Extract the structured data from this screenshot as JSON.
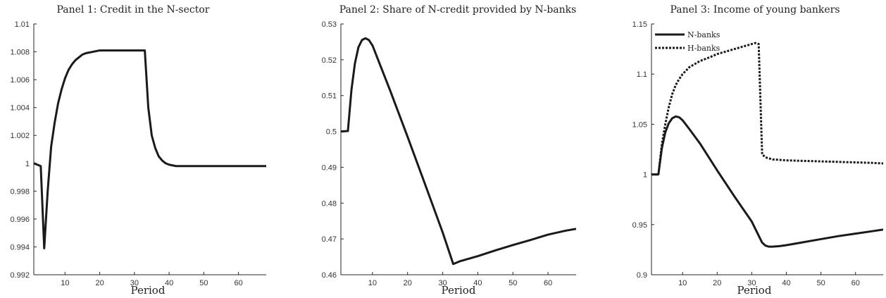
{
  "chart_data": [
    {
      "type": "line",
      "title": "Panel 1: Credit in the N-sector",
      "xlabel": "Period",
      "ylabel": "",
      "xlim": [
        1,
        68
      ],
      "ylim": [
        0.992,
        1.01
      ],
      "xticks": [
        10,
        20,
        30,
        40,
        50,
        60
      ],
      "yticks": [
        "0.992",
        "0.994",
        "0.996",
        "0.998",
        "1",
        "1.002",
        "1.004",
        "1.006",
        "1.008",
        "1.01"
      ],
      "series": [
        {
          "line_style": "solid",
          "color": "#1a1a1a",
          "x": [
            1,
            3,
            4,
            5,
            6,
            7,
            8,
            9,
            10,
            11,
            12,
            13,
            14,
            15,
            16,
            18,
            20,
            22,
            25,
            28,
            30,
            32,
            33,
            34,
            35,
            36,
            37,
            38,
            39,
            40,
            42,
            45,
            50,
            60,
            68
          ],
          "y": [
            1.0,
            0.9998,
            0.9939,
            0.998,
            1.0012,
            1.0029,
            1.0043,
            1.0053,
            1.0061,
            1.0067,
            1.0071,
            1.0074,
            1.0076,
            1.0078,
            1.0079,
            1.008,
            1.0081,
            1.0081,
            1.0081,
            1.0081,
            1.0081,
            1.0081,
            1.0081,
            1.004,
            1.002,
            1.0011,
            1.0005,
            1.0002,
            1.0,
            0.9999,
            0.9998,
            0.9998,
            0.9998,
            0.9998,
            0.9998
          ]
        }
      ]
    },
    {
      "type": "line",
      "title": "Panel 2: Share of N-credit provided by N-banks",
      "xlabel": "Period",
      "ylabel": "",
      "xlim": [
        1,
        68
      ],
      "ylim": [
        0.46,
        0.53
      ],
      "xticks": [
        10,
        20,
        30,
        40,
        50,
        60
      ],
      "yticks": [
        "0.46",
        "0.47",
        "0.48",
        "0.49",
        "0.5",
        "0.51",
        "0.52",
        "0.53"
      ],
      "series": [
        {
          "line_style": "solid",
          "color": "#1a1a1a",
          "x": [
            1,
            3,
            4,
            5,
            6,
            7,
            8,
            9,
            10,
            12,
            15,
            20,
            25,
            30,
            33,
            35,
            40,
            45,
            50,
            55,
            60,
            65,
            68
          ],
          "y": [
            0.5,
            0.5001,
            0.5115,
            0.519,
            0.5235,
            0.5255,
            0.526,
            0.5255,
            0.524,
            0.519,
            0.5115,
            0.4985,
            0.4852,
            0.4718,
            0.463,
            0.4638,
            0.4652,
            0.4668,
            0.4683,
            0.4697,
            0.4712,
            0.4723,
            0.4728
          ]
        }
      ]
    },
    {
      "type": "line",
      "title": "Panel 3: Income of young bankers",
      "xlabel": "Period",
      "ylabel": "",
      "xlim": [
        1,
        68
      ],
      "ylim": [
        0.9,
        1.15
      ],
      "xticks": [
        10,
        20,
        30,
        40,
        50,
        60
      ],
      "yticks": [
        "0.9",
        "0.95",
        "1",
        "1.05",
        "1.1",
        "1.15"
      ],
      "legend_position": "top-left",
      "series": [
        {
          "name": "N-banks",
          "line_style": "solid",
          "color": "#1a1a1a",
          "x": [
            1,
            3,
            4,
            5,
            6,
            7,
            8,
            9,
            10,
            12,
            15,
            20,
            25,
            30,
            33,
            34,
            35,
            36,
            38,
            40,
            45,
            50,
            55,
            60,
            65,
            68
          ],
          "y": [
            1.0,
            1.0,
            1.026,
            1.042,
            1.051,
            1.056,
            1.0578,
            1.057,
            1.054,
            1.045,
            1.031,
            1.004,
            0.978,
            0.953,
            0.932,
            0.929,
            0.928,
            0.928,
            0.9285,
            0.9295,
            0.9325,
            0.9355,
            0.9385,
            0.941,
            0.9435,
            0.945
          ]
        },
        {
          "name": "H-banks",
          "line_style": "dotted",
          "color": "#1a1a1a",
          "x": [
            1,
            3,
            4,
            5,
            6,
            7,
            8,
            9,
            10,
            12,
            15,
            18,
            20,
            25,
            28,
            30,
            31,
            32,
            33,
            34,
            35,
            36,
            38,
            40,
            45,
            50,
            55,
            60,
            65,
            68
          ],
          "y": [
            1.0,
            1.0,
            1.03,
            1.05,
            1.067,
            1.08,
            1.089,
            1.095,
            1.1,
            1.107,
            1.113,
            1.117,
            1.12,
            1.125,
            1.128,
            1.13,
            1.131,
            1.13,
            1.02,
            1.017,
            1.016,
            1.015,
            1.0145,
            1.014,
            1.0135,
            1.013,
            1.0125,
            1.012,
            1.0115,
            1.011
          ]
        }
      ]
    }
  ]
}
